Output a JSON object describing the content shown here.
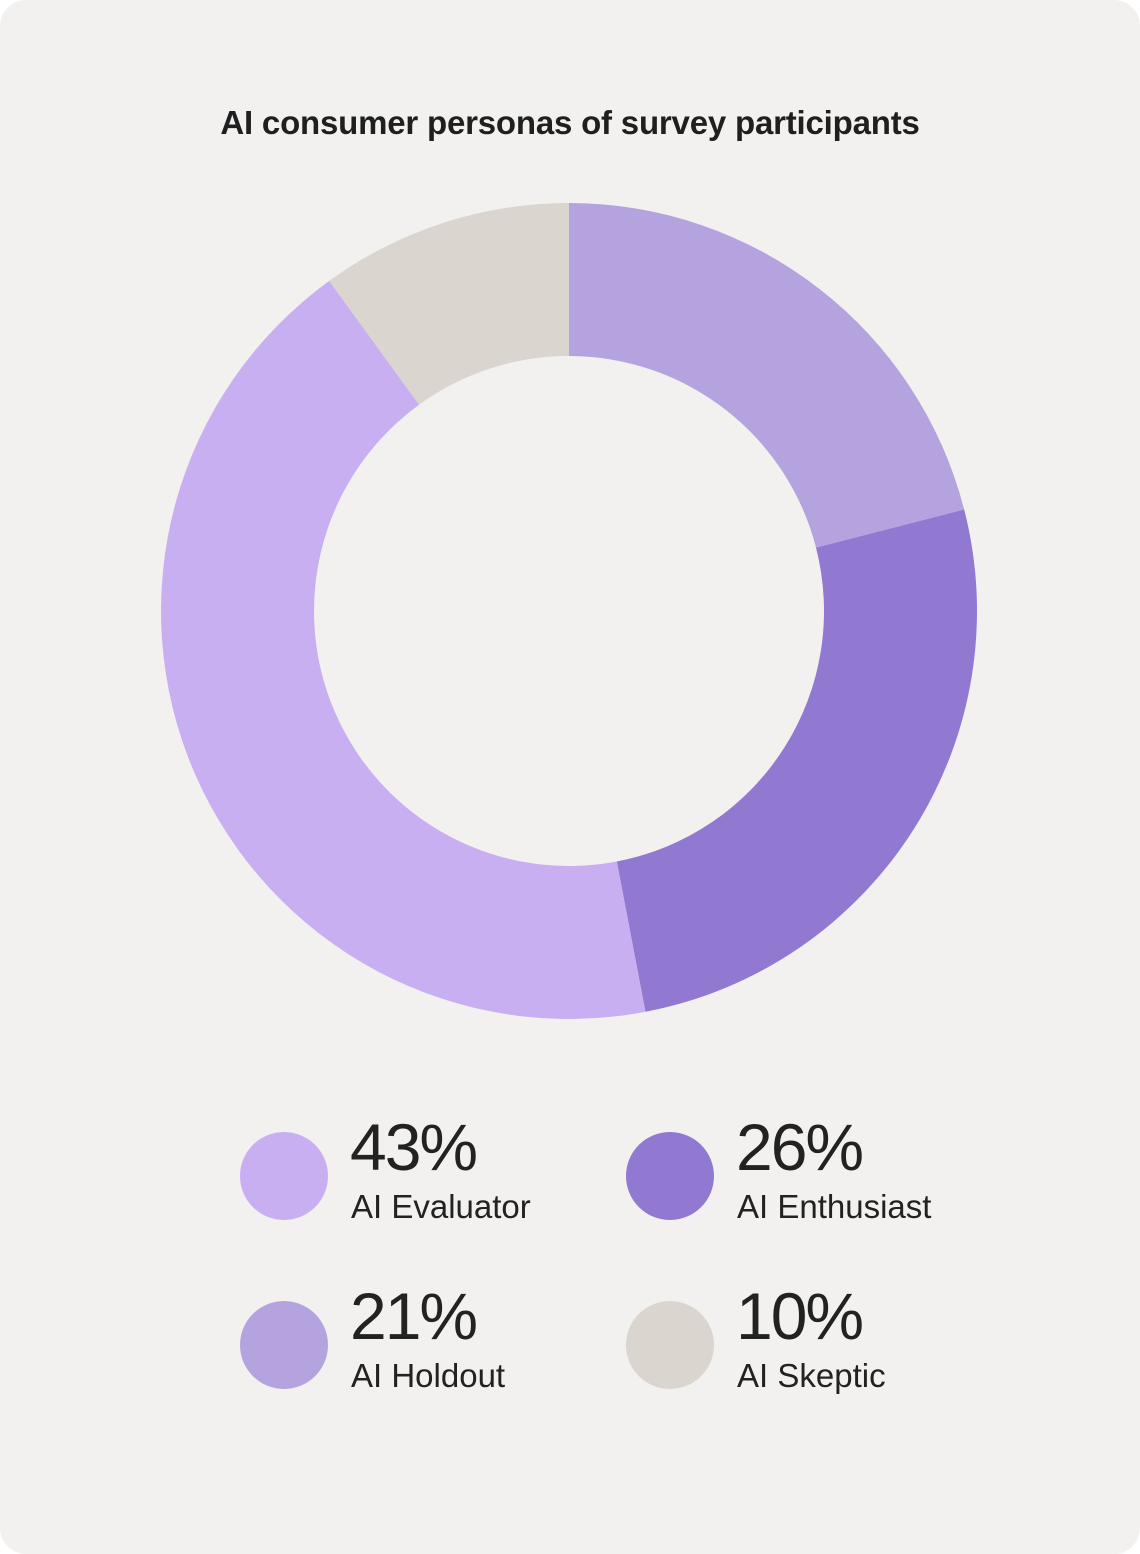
{
  "chart_data": {
    "type": "pie",
    "title": "AI consumer personas of survey participants",
    "series": [
      {
        "name": "AI Holdout",
        "value": 21,
        "label": "21%",
        "color": "#b5a3df"
      },
      {
        "name": "AI Enthusiast",
        "value": 26,
        "label": "26%",
        "color": "#9178d1"
      },
      {
        "name": "AI Evaluator",
        "value": 43,
        "label": "43%",
        "color": "#c8aff1"
      },
      {
        "name": "AI Skeptic",
        "value": 10,
        "label": "10%",
        "color": "#dbd5cf"
      }
    ],
    "legend": [
      {
        "value": "43%",
        "label": "AI Evaluator",
        "color": "#c8aff1"
      },
      {
        "value": "26%",
        "label": "AI Enthusiast",
        "color": "#9178d1"
      },
      {
        "value": "21%",
        "label": "AI Holdout",
        "color": "#b5a3df"
      },
      {
        "value": "10%",
        "label": "AI Skeptic",
        "color": "#dbd5cf"
      }
    ],
    "legend_placement": "bottom",
    "donut": true,
    "background_color": "#f2f1ef"
  }
}
